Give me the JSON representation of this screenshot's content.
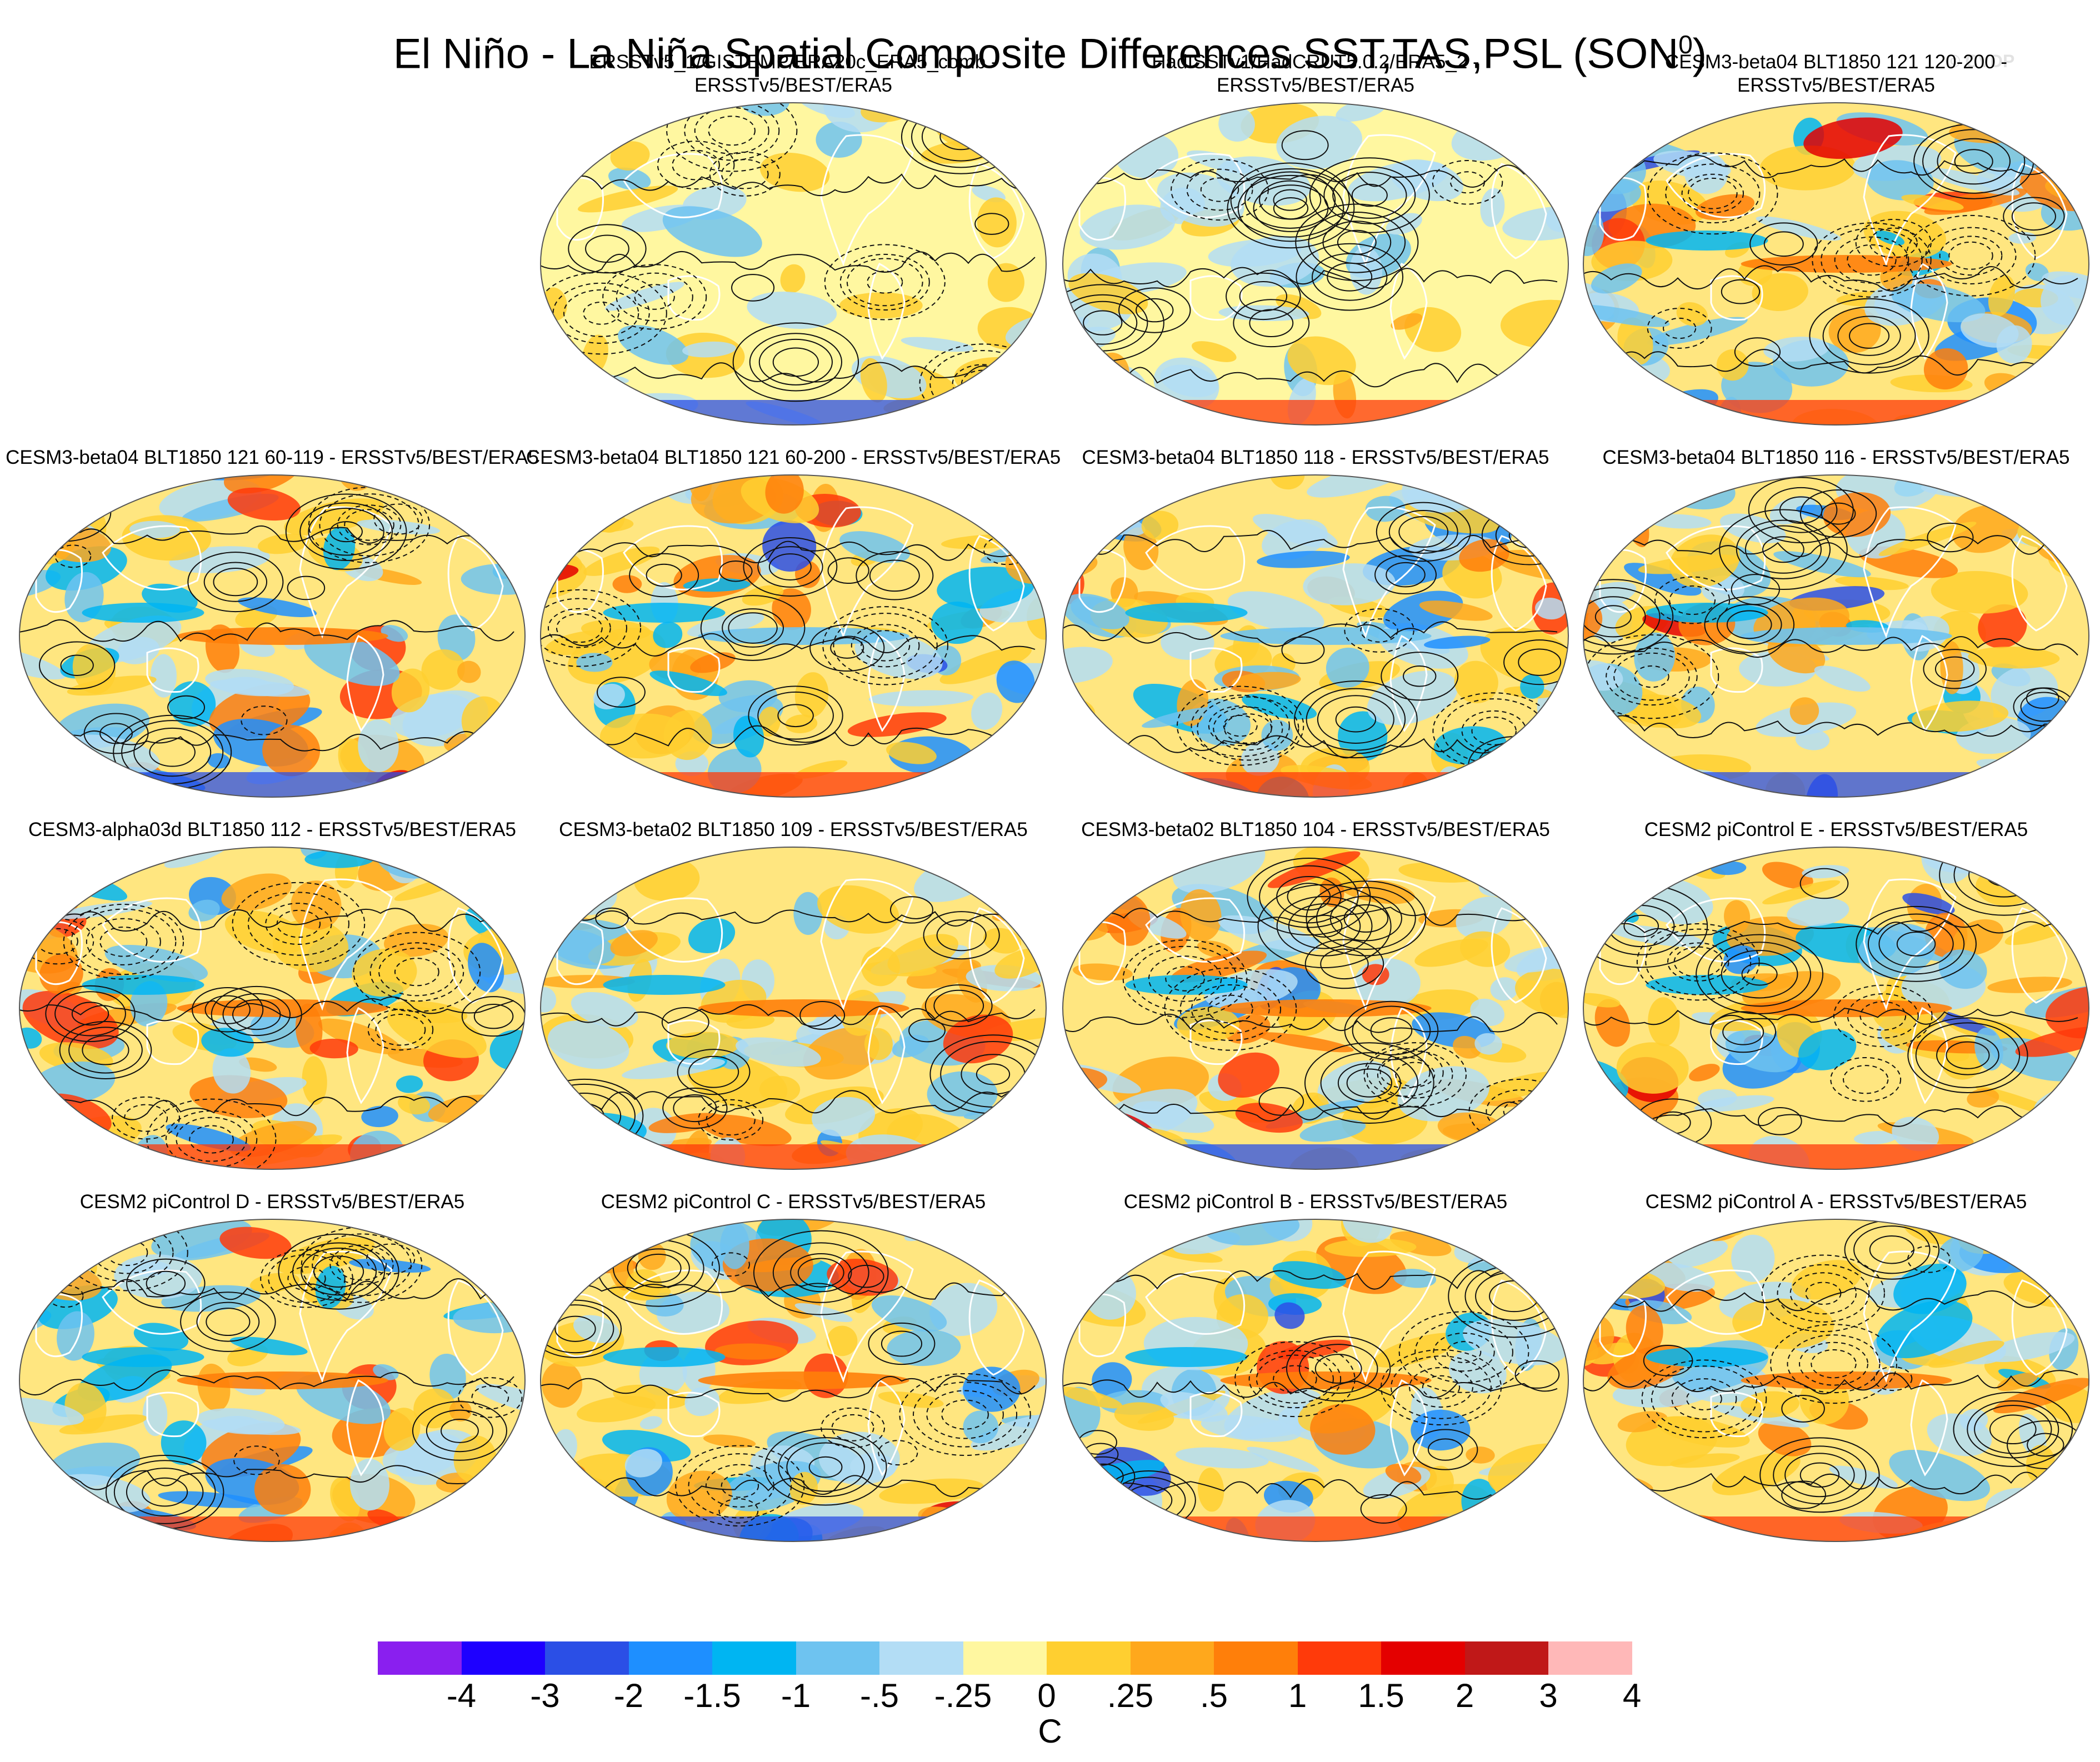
{
  "figure": {
    "title": "El Niño - La Niña Spatial Composite Differences SST,TAS,PSL (SON",
    "title_sup": "0",
    "title_close": ")",
    "credit": "© CVDP"
  },
  "panels": [
    {
      "title_line1": "ERSSTv5_1/GISTEMP/ERA20c_ERA5_comb -",
      "title_line2": "ERSSTv5/BEST/ERA5"
    },
    {
      "title_line1": "HadISSTv1/HadCRUT5.0.2/ERA5_2 -",
      "title_line2": "ERSSTv5/BEST/ERA5"
    },
    {
      "title_line1": "CESM3-beta04 BLT1850 121 120-200 - ERSSTv5/BEST/ERA5",
      "title_line2": ""
    },
    {
      "title_line1": "CESM3-beta04 BLT1850 121 60-119 - ERSSTv5/BEST/ERA5",
      "title_line2": ""
    },
    {
      "title_line1": "CESM3-beta04 BLT1850 121 60-200 - ERSSTv5/BEST/ERA5",
      "title_line2": ""
    },
    {
      "title_line1": "CESM3-beta04 BLT1850 118 - ERSSTv5/BEST/ERA5",
      "title_line2": ""
    },
    {
      "title_line1": "CESM3-beta04 BLT1850 116 - ERSSTv5/BEST/ERA5",
      "title_line2": ""
    },
    {
      "title_line1": "CESM3-alpha03d BLT1850 112 - ERSSTv5/BEST/ERA5",
      "title_line2": ""
    },
    {
      "title_line1": "CESM3-beta02 BLT1850 109 - ERSSTv5/BEST/ERA5",
      "title_line2": ""
    },
    {
      "title_line1": "CESM3-beta02 BLT1850 104 - ERSSTv5/BEST/ERA5",
      "title_line2": ""
    },
    {
      "title_line1": "CESM2 piControl E - ERSSTv5/BEST/ERA5",
      "title_line2": ""
    },
    {
      "title_line1": "CESM2 piControl D - ERSSTv5/BEST/ERA5",
      "title_line2": ""
    },
    {
      "title_line1": "CESM2 piControl C - ERSSTv5/BEST/ERA5",
      "title_line2": ""
    },
    {
      "title_line1": "CESM2 piControl B - ERSSTv5/BEST/ERA5",
      "title_line2": ""
    },
    {
      "title_line1": "CESM2 piControl A - ERSSTv5/BEST/ERA5",
      "title_line2": ""
    }
  ],
  "colorbar": {
    "units": "C",
    "tick_labels": [
      "-4",
      "-3",
      "-2",
      "-1.5",
      "-1",
      "-.5",
      "-.25",
      "0",
      ".25",
      ".5",
      "1",
      "1.5",
      "2",
      "3",
      "4"
    ],
    "colors": [
      "#8a1fef",
      "#1e00ff",
      "#2b4fe6",
      "#1e8fff",
      "#00b5f2",
      "#6ec3f0",
      "#b3ddf5",
      "#fff7a0",
      "#ffcf30",
      "#ffa81c",
      "#ff7f0a",
      "#ff3a0a",
      "#e40000",
      "#c01818",
      "#ffb8b8"
    ]
  }
}
